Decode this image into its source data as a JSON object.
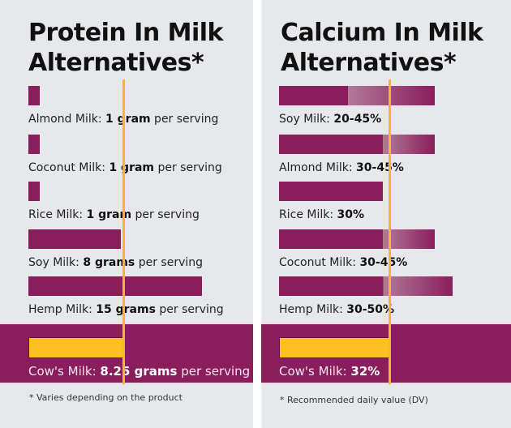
{
  "chart_data": [
    {
      "type": "bar",
      "title": "Protein In Milk Alternatives*",
      "unit": "grams",
      "reference": {
        "name": "Cow's Milk",
        "value": 8.25,
        "label": "8.25 grams",
        "suffix": " per serving"
      },
      "categories": [
        "Almond Milk",
        "Coconut Milk",
        "Rice Milk",
        "Soy Milk",
        "Hemp Milk"
      ],
      "values": [
        1,
        1,
        1,
        8,
        15
      ],
      "value_labels": [
        "1 gram",
        "1 gram",
        "1 gram",
        "8 grams",
        "15 grams"
      ],
      "suffix": " per serving",
      "footnote": "* Varies depending on the product"
    },
    {
      "type": "bar",
      "title": "Calcium In Milk Alternatives*",
      "unit": "% DV",
      "reference": {
        "name": "Cow's Milk",
        "value": 32,
        "label": "32%",
        "suffix": ""
      },
      "categories": [
        "Soy Milk",
        "Almond Milk",
        "Rice Milk",
        "Coconut Milk",
        "Hemp Milk"
      ],
      "ranges": [
        [
          20,
          45
        ],
        [
          30,
          45
        ],
        [
          30,
          30
        ],
        [
          30,
          45
        ],
        [
          30,
          50
        ]
      ],
      "value_labels": [
        "20-45%",
        "30-45%",
        "30%",
        "30-45%",
        "30-50%"
      ],
      "suffix": "",
      "footnote": "* Recommended daily value (DV)"
    }
  ],
  "colors": {
    "bar": "#8a1d5c",
    "reference": "#fbbf24",
    "background": "#e6e8ec"
  }
}
